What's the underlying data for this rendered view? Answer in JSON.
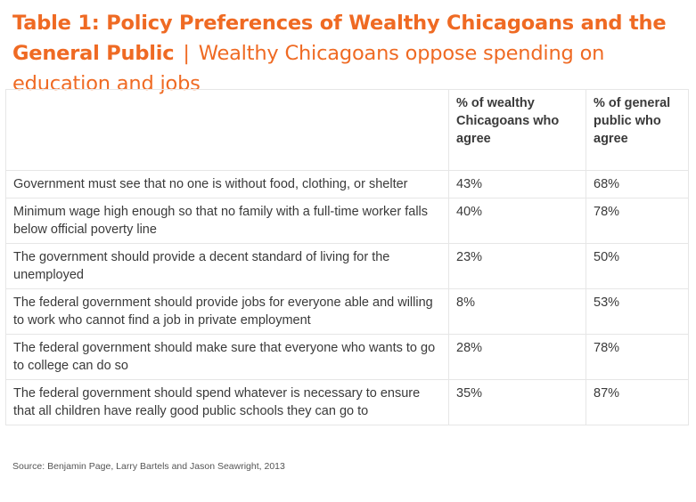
{
  "title": {
    "bold": "Table 1: Policy Preferences of Wealthy Chicagoans and the General Public",
    "separator": "|",
    "subtitle": "Wealthy Chicagoans oppose spending on education and jobs"
  },
  "table": {
    "headers": [
      "",
      "% of wealthy Chicagoans who agree",
      "% of general public who agree"
    ],
    "rows": [
      {
        "policy": "Government must see that no one is without food, clothing, or shelter",
        "wealthy": "43%",
        "general": "68%"
      },
      {
        "policy": "Minimum wage high enough so that no family with a full-time worker falls below official poverty line",
        "wealthy": "40%",
        "general": "78%"
      },
      {
        "policy": "The government should provide a decent standard of living for the unemployed",
        "wealthy": "23%",
        "general": "50%"
      },
      {
        "policy": "The federal government should provide jobs for everyone able and willing to work who cannot find a job in private employment",
        "wealthy": "8%",
        "general": "53%"
      },
      {
        "policy": "The federal government should make sure that everyone who wants to go to college can do so",
        "wealthy": "28%",
        "general": "78%"
      },
      {
        "policy": "The federal government should spend whatever is necessary to ensure that all children have really good public schools they can go to",
        "wealthy": "35%",
        "general": "87%"
      }
    ]
  },
  "source": "Source: Benjamin Page, Larry Bartels and Jason Seawright, 2013",
  "colors": {
    "title": "#ef6a23",
    "text": "#3a3a3a",
    "border": "#e6e6e6"
  }
}
